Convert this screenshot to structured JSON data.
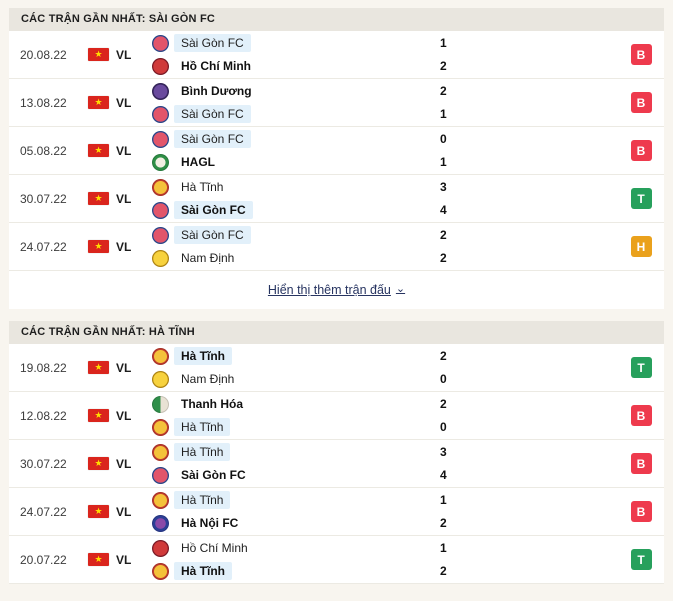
{
  "colors": {
    "win_badge": "#27a05c",
    "loss_badge": "#ee3a4d",
    "draw_badge": "#eaa11c",
    "flag_red": "#da251d",
    "flag_star_yellow": "#ffde00",
    "team_highlight_bg": "#e2f0fa",
    "link_color": "#273461",
    "header_bg": "#e9e6df",
    "page_bg": "#f8f5ef"
  },
  "icons": {
    "vietnam_flag_star": "★",
    "chevron_down": "⌄"
  },
  "sections": [
    {
      "title": "CÁC TRẬN GẦN NHẤT: SÀI GÒN FC",
      "show_more_label": "Hiển thị thêm trận đấu",
      "matches": [
        {
          "date": "20.08.22",
          "league": "VL",
          "home": {
            "name": "Sài Gòn FC",
            "score": "1",
            "logo": "saigon-fc-crest"
          },
          "away": {
            "name": "Hồ Chí Minh",
            "score": "2",
            "logo": "ho-chi-minh-crest"
          },
          "result": "B",
          "result_type": "loss"
        },
        {
          "date": "13.08.22",
          "league": "VL",
          "home": {
            "name": "Bình Dương",
            "score": "2",
            "logo": "binh-duong-crest"
          },
          "away": {
            "name": "Sài Gòn FC",
            "score": "1",
            "logo": "saigon-fc-crest"
          },
          "result": "B",
          "result_type": "loss"
        },
        {
          "date": "05.08.22",
          "league": "VL",
          "home": {
            "name": "Sài Gòn FC",
            "score": "0",
            "logo": "saigon-fc-crest"
          },
          "away": {
            "name": "HAGL",
            "score": "1",
            "logo": "hagl-crest"
          },
          "result": "B",
          "result_type": "loss"
        },
        {
          "date": "30.07.22",
          "league": "VL",
          "home": {
            "name": "Hà Tĩnh",
            "score": "3",
            "logo": "ha-tinh-crest"
          },
          "away": {
            "name": "Sài Gòn FC",
            "score": "4",
            "logo": "saigon-fc-crest"
          },
          "result": "T",
          "result_type": "win"
        },
        {
          "date": "24.07.22",
          "league": "VL",
          "home": {
            "name": "Sài Gòn FC",
            "score": "2",
            "logo": "saigon-fc-crest"
          },
          "away": {
            "name": "Nam Định",
            "score": "2",
            "logo": "nam-dinh-crest"
          },
          "result": "H",
          "result_type": "draw"
        }
      ]
    },
    {
      "title": "CÁC TRẬN GẦN NHẤT: HÀ TĨNH",
      "matches": [
        {
          "date": "19.08.22",
          "league": "VL",
          "home": {
            "name": "Hà Tĩnh",
            "score": "2",
            "logo": "ha-tinh-crest"
          },
          "away": {
            "name": "Nam Định",
            "score": "0",
            "logo": "nam-dinh-crest"
          },
          "result": "T",
          "result_type": "win"
        },
        {
          "date": "12.08.22",
          "league": "VL",
          "home": {
            "name": "Thanh Hóa",
            "score": "2",
            "logo": "thanh-hoa-crest"
          },
          "away": {
            "name": "Hà Tĩnh",
            "score": "0",
            "logo": "ha-tinh-crest"
          },
          "result": "B",
          "result_type": "loss"
        },
        {
          "date": "30.07.22",
          "league": "VL",
          "home": {
            "name": "Hà Tĩnh",
            "score": "3",
            "logo": "ha-tinh-crest"
          },
          "away": {
            "name": "Sài Gòn FC",
            "score": "4",
            "logo": "saigon-fc-crest"
          },
          "result": "B",
          "result_type": "loss"
        },
        {
          "date": "24.07.22",
          "league": "VL",
          "home": {
            "name": "Hà Tĩnh",
            "score": "1",
            "logo": "ha-tinh-crest"
          },
          "away": {
            "name": "Hà Nội FC",
            "score": "2",
            "logo": "ha-noi-fc-crest"
          },
          "result": "B",
          "result_type": "loss"
        },
        {
          "date": "20.07.22",
          "league": "VL",
          "home": {
            "name": "Hồ Chí Minh",
            "score": "1",
            "logo": "ho-chi-minh-crest"
          },
          "away": {
            "name": "Hà Tĩnh",
            "score": "2",
            "logo": "ha-tinh-crest"
          },
          "result": "T",
          "result_type": "win"
        }
      ]
    }
  ]
}
